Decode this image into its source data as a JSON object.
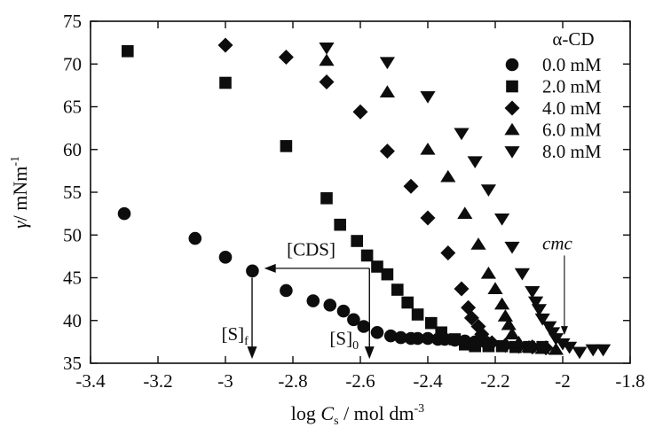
{
  "figure": {
    "background": "#ffffff",
    "ink": "#0d0d0d"
  },
  "chart_data": {
    "type": "scatter",
    "title": "",
    "xlabel_parts": [
      {
        "t": "log "
      },
      {
        "t": "C",
        "i": 1
      },
      {
        "t": "s",
        "sub": 1
      },
      {
        "t": " / mol dm"
      },
      {
        "t": "-3",
        "sup": 1
      }
    ],
    "ylabel_parts": [
      {
        "t": "γ",
        "i": 1
      },
      {
        "t": "/ mNm"
      },
      {
        "t": "-1",
        "sup": 1
      }
    ],
    "xlim": [
      -3.4,
      -1.8
    ],
    "ylim": [
      35,
      75
    ],
    "grid": false,
    "xticks": [
      {
        "v": -3.4,
        "label": "-3.4"
      },
      {
        "v": -3.2,
        "label": "-3.2"
      },
      {
        "v": -3.0,
        "label": "-3"
      },
      {
        "v": -2.8,
        "label": "-2.8"
      },
      {
        "v": -2.6,
        "label": "-2.6"
      },
      {
        "v": -2.4,
        "label": "-2.4"
      },
      {
        "v": -2.2,
        "label": "-2.2"
      },
      {
        "v": -2.0,
        "label": "-2"
      },
      {
        "v": -1.8,
        "label": "-1.8"
      }
    ],
    "yticks": [
      {
        "v": 35,
        "label": "35"
      },
      {
        "v": 40,
        "label": "40"
      },
      {
        "v": 45,
        "label": "45"
      },
      {
        "v": 50,
        "label": "50"
      },
      {
        "v": 55,
        "label": "55"
      },
      {
        "v": 60,
        "label": "60"
      },
      {
        "v": 65,
        "label": "65"
      },
      {
        "v": 70,
        "label": "70"
      },
      {
        "v": 75,
        "label": "75"
      }
    ],
    "legend": {
      "title": "α-CD",
      "position": "top-right-inside",
      "items": [
        {
          "marker": "circle",
          "label": "0.0 mM"
        },
        {
          "marker": "square",
          "label": "2.0 mM"
        },
        {
          "marker": "diamond",
          "label": "4.0 mM"
        },
        {
          "marker": "triangle-up",
          "label": "6.0 mM"
        },
        {
          "marker": "triangle-down",
          "label": "8.0 mM"
        }
      ]
    },
    "series": [
      {
        "name": "0.0 mM",
        "marker": "circle",
        "points": [
          [
            -3.3,
            52.5
          ],
          [
            -3.09,
            49.6
          ],
          [
            -3.0,
            47.4
          ],
          [
            -2.92,
            45.8
          ],
          [
            -2.82,
            43.5
          ],
          [
            -2.74,
            42.3
          ],
          [
            -2.69,
            41.8
          ],
          [
            -2.65,
            41.1
          ],
          [
            -2.62,
            40.1
          ],
          [
            -2.59,
            39.3
          ],
          [
            -2.55,
            38.6
          ],
          [
            -2.51,
            38.2
          ],
          [
            -2.48,
            38.0
          ],
          [
            -2.45,
            37.9
          ],
          [
            -2.43,
            37.9
          ],
          [
            -2.4,
            37.9
          ],
          [
            -2.37,
            37.8
          ],
          [
            -2.35,
            37.8
          ],
          [
            -2.32,
            37.7
          ],
          [
            -2.29,
            37.6
          ],
          [
            -2.26,
            37.5
          ],
          [
            -2.23,
            37.5
          ]
        ]
      },
      {
        "name": "2.0 mM",
        "marker": "square",
        "points": [
          [
            -3.29,
            71.5
          ],
          [
            -3.0,
            67.8
          ],
          [
            -2.82,
            60.4
          ],
          [
            -2.7,
            54.3
          ],
          [
            -2.66,
            51.2
          ],
          [
            -2.61,
            49.3
          ],
          [
            -2.58,
            47.6
          ],
          [
            -2.55,
            46.3
          ],
          [
            -2.52,
            45.4
          ],
          [
            -2.49,
            43.6
          ],
          [
            -2.46,
            42.1
          ],
          [
            -2.43,
            40.7
          ],
          [
            -2.39,
            39.7
          ],
          [
            -2.36,
            38.6
          ],
          [
            -2.32,
            37.8
          ],
          [
            -2.29,
            37.2
          ],
          [
            -2.26,
            37.0
          ],
          [
            -2.22,
            37.0
          ],
          [
            -2.18,
            37.0
          ],
          [
            -2.14,
            36.9
          ],
          [
            -2.1,
            36.9
          ],
          [
            -2.06,
            36.9
          ]
        ]
      },
      {
        "name": "4.0 mM",
        "marker": "diamond",
        "points": [
          [
            -3.0,
            72.2
          ],
          [
            -2.82,
            70.8
          ],
          [
            -2.7,
            67.9
          ],
          [
            -2.6,
            64.4
          ],
          [
            -2.52,
            59.8
          ],
          [
            -2.45,
            55.7
          ],
          [
            -2.4,
            52.0
          ],
          [
            -2.34,
            47.9
          ],
          [
            -2.3,
            43.7
          ],
          [
            -2.28,
            41.5
          ],
          [
            -2.27,
            40.3
          ],
          [
            -2.25,
            39.3
          ],
          [
            -2.24,
            38.4
          ],
          [
            -2.21,
            37.4
          ],
          [
            -2.17,
            37.1
          ],
          [
            -2.13,
            37.0
          ],
          [
            -2.09,
            36.9
          ],
          [
            -2.05,
            36.8
          ]
        ]
      },
      {
        "name": "6.0 mM",
        "marker": "triangle-up",
        "points": [
          [
            -2.7,
            70.4
          ],
          [
            -2.52,
            66.7
          ],
          [
            -2.4,
            60.0
          ],
          [
            -2.34,
            56.8
          ],
          [
            -2.29,
            52.5
          ],
          [
            -2.25,
            48.9
          ],
          [
            -2.22,
            45.5
          ],
          [
            -2.2,
            43.7
          ],
          [
            -2.18,
            41.9
          ],
          [
            -2.17,
            40.5
          ],
          [
            -2.16,
            39.5
          ],
          [
            -2.15,
            38.4
          ],
          [
            -2.13,
            37.4
          ],
          [
            -2.1,
            36.9
          ],
          [
            -2.06,
            36.7
          ],
          [
            -2.02,
            36.6
          ]
        ]
      },
      {
        "name": "8.0 mM",
        "marker": "triangle-down",
        "points": [
          [
            -2.7,
            71.9
          ],
          [
            -2.52,
            70.2
          ],
          [
            -2.4,
            66.2
          ],
          [
            -2.3,
            61.9
          ],
          [
            -2.26,
            58.6
          ],
          [
            -2.22,
            55.3
          ],
          [
            -2.18,
            51.9
          ],
          [
            -2.15,
            48.6
          ],
          [
            -2.12,
            45.5
          ],
          [
            -2.09,
            43.4
          ],
          [
            -2.08,
            42.2
          ],
          [
            -2.07,
            41.3
          ],
          [
            -2.06,
            40.2
          ],
          [
            -2.04,
            39.3
          ],
          [
            -2.03,
            38.6
          ],
          [
            -2.02,
            37.9
          ],
          [
            -2.0,
            37.3
          ],
          [
            -1.98,
            36.9
          ],
          [
            -1.95,
            36.3
          ],
          [
            -1.91,
            36.6
          ],
          [
            -1.88,
            36.6
          ]
        ]
      }
    ],
    "annotations": [
      {
        "id": "cds-label",
        "text": "[CDS]",
        "x": -2.746,
        "y": 47.6,
        "anchor": "middle",
        "italic": false
      },
      {
        "id": "sf-label",
        "text": "[S]",
        "sub": "f",
        "x": -2.932,
        "y": 37.7,
        "anchor": "end",
        "italic": false
      },
      {
        "id": "s0-label",
        "text": "[S]",
        "sub": "0",
        "x": -2.605,
        "y": 37.2,
        "anchor": "end",
        "italic": false
      },
      {
        "id": "cmc-label",
        "text": "cmc",
        "x": -2.016,
        "y": 48.3,
        "anchor": "middle",
        "italic": true
      }
    ],
    "arrows": [
      {
        "id": "cds-arrow",
        "type": "h",
        "y": 46.1,
        "from": -2.573,
        "to": -2.885,
        "headL": 13,
        "headW": 10,
        "sw": 1.3
      },
      {
        "id": "sf-arrow",
        "type": "v",
        "x": -2.921,
        "from": 45.0,
        "to": 35.5,
        "headW": 11,
        "headH": 14,
        "sw": 1.4
      },
      {
        "id": "s0-arrow",
        "type": "v",
        "x": -2.573,
        "from": 46.1,
        "to": 35.5,
        "headW": 11,
        "headH": 14,
        "sw": 1.4
      },
      {
        "id": "cmc-arrow",
        "type": "v",
        "x": -1.995,
        "from": 47.6,
        "to": 38.3,
        "headW": 8,
        "headH": 10,
        "sw": 1.1
      }
    ]
  }
}
